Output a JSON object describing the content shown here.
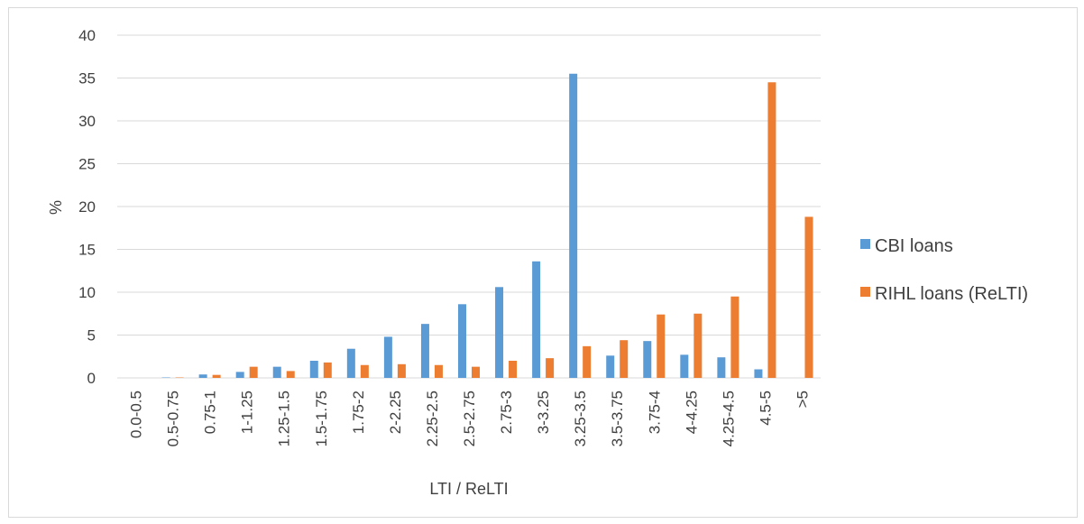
{
  "chart_data": {
    "type": "bar",
    "title": "",
    "xlabel": "LTI / ReLTI",
    "ylabel": "%",
    "ylim": [
      0,
      40
    ],
    "yticks": [
      0,
      5,
      10,
      15,
      20,
      25,
      30,
      35,
      40
    ],
    "grid": true,
    "legend_position": "right",
    "categories": [
      "0.0-0.5",
      "0.5-0.75",
      "0.75-1",
      "1-1.25",
      "1.25-1.5",
      "1.5-1.75",
      "1.75-2",
      "2-2.25",
      "2.25-2.5",
      "2.5-2.75",
      "2.75-3",
      "3-3.25",
      "3.25-3.5",
      "3.5-3.75",
      "3.75-4",
      "4-4.25",
      "4.25-4.5",
      "4.5-5",
      ">5"
    ],
    "series": [
      {
        "name": "CBI loans",
        "color": "#5b9bd5",
        "values": [
          0,
          0.05,
          0.4,
          0.7,
          1.3,
          2.0,
          3.4,
          4.8,
          6.3,
          8.6,
          10.6,
          13.6,
          35.5,
          2.6,
          4.3,
          2.7,
          2.4,
          1.0,
          0
        ]
      },
      {
        "name": "RIHL loans (ReLTI)",
        "color": "#ed7d31",
        "values": [
          0,
          0.05,
          0.35,
          1.3,
          0.8,
          1.8,
          1.5,
          1.6,
          1.5,
          1.3,
          2.0,
          2.3,
          3.7,
          4.4,
          7.4,
          7.5,
          9.5,
          34.5,
          18.8
        ]
      }
    ]
  }
}
